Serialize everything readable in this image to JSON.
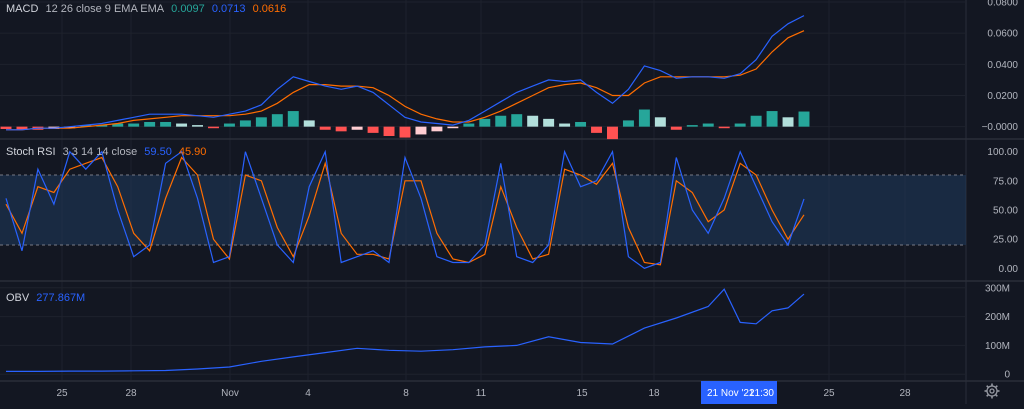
{
  "colors": {
    "background": "#131722",
    "grid": "#1e222d",
    "text": "#b2b5be",
    "blue": "#2962ff",
    "orange": "#ff6d00",
    "hist_green_strong": "#26a69a",
    "hist_green_light": "#b2dfdb",
    "hist_red_strong": "#ff5252",
    "hist_red_light": "#ffcdd2",
    "rsi_band": "#1f3a5c",
    "crosshair_label_bg": "#2962ff"
  },
  "macd": {
    "title": "MACD",
    "params": "12 26 close 9 EMA EMA",
    "histogram_value": "0.0097",
    "macd_value": "0.0713",
    "signal_value": "0.0616",
    "axis_ticks": [
      "0.0800",
      "0.0600",
      "0.0400",
      "0.0200",
      "−0.0000"
    ]
  },
  "stoch_rsi": {
    "title": "Stoch RSI",
    "params": "3 3 14 14 close",
    "k_value": "59.50",
    "d_value": "45.90",
    "axis_ticks": [
      "100.00",
      "75.00",
      "50.00",
      "25.00",
      "0.00"
    ]
  },
  "obv": {
    "title": "OBV",
    "value": "277.867M",
    "axis_ticks": [
      "300M",
      "200M",
      "100M",
      "0"
    ]
  },
  "time_axis": {
    "labels": [
      "25",
      "28",
      "Nov",
      "4",
      "8",
      "11",
      "15",
      "18",
      "25",
      "28"
    ],
    "crosshair_date": "21 Nov '21",
    "crosshair_time": "21:30"
  },
  "chart_data": [
    {
      "type": "line",
      "title": "MACD 12 26 close 9 EMA EMA",
      "ylim": [
        -0.006,
        0.08
      ],
      "x": [
        0,
        2,
        4,
        6,
        8,
        10,
        12,
        14,
        16,
        18,
        20,
        22,
        24,
        26,
        28,
        30,
        32,
        34,
        36,
        38,
        40,
        42,
        44,
        46,
        48,
        50,
        52,
        54,
        56,
        58,
        60,
        62,
        64,
        66,
        68,
        70,
        72,
        74,
        76,
        78,
        80,
        82,
        84,
        86,
        88,
        90,
        92,
        94,
        96,
        98,
        100
      ],
      "series": [
        {
          "name": "MACD",
          "values": [
            -0.002,
            -0.002,
            -0.001,
            -0.001,
            0.0,
            0.001,
            0.002,
            0.004,
            0.006,
            0.008,
            0.008,
            0.008,
            0.007,
            0.006,
            0.008,
            0.01,
            0.014,
            0.024,
            0.032,
            0.029,
            0.026,
            0.024,
            0.026,
            0.022,
            0.014,
            0.006,
            0.003,
            0.002,
            0.001,
            0.004,
            0.01,
            0.016,
            0.022,
            0.026,
            0.03,
            0.029,
            0.03,
            0.022,
            0.015,
            0.024,
            0.039,
            0.036,
            0.031,
            0.032,
            0.032,
            0.031,
            0.034,
            0.043,
            0.058,
            0.066,
            0.0713
          ]
        },
        {
          "name": "Signal",
          "values": [
            -0.002,
            -0.002,
            -0.001,
            -0.001,
            -0.001,
            0.0,
            0.001,
            0.002,
            0.004,
            0.005,
            0.006,
            0.007,
            0.007,
            0.007,
            0.007,
            0.008,
            0.01,
            0.015,
            0.022,
            0.027,
            0.027,
            0.026,
            0.026,
            0.025,
            0.02,
            0.013,
            0.008,
            0.005,
            0.003,
            0.003,
            0.006,
            0.01,
            0.015,
            0.02,
            0.025,
            0.027,
            0.028,
            0.025,
            0.02,
            0.02,
            0.028,
            0.032,
            0.032,
            0.032,
            0.032,
            0.032,
            0.033,
            0.037,
            0.048,
            0.057,
            0.0616
          ]
        },
        {
          "name": "Histogram",
          "values": [
            -0.0015,
            -0.002,
            -0.002,
            -0.0015,
            -0.001,
            0.001,
            0.001,
            0.002,
            0.002,
            0.003,
            0.003,
            0.002,
            0.001,
            -0.001,
            0.002,
            0.004,
            0.006,
            0.008,
            0.01,
            0.004,
            -0.002,
            -0.003,
            -0.002,
            -0.004,
            -0.006,
            -0.007,
            -0.005,
            -0.003,
            -0.001,
            0.002,
            0.005,
            0.007,
            0.008,
            0.007,
            0.005,
            0.002,
            0.003,
            -0.004,
            -0.008,
            0.004,
            0.011,
            0.006,
            -0.002,
            0.001,
            0.002,
            -0.001,
            0.002,
            0.007,
            0.01,
            0.006,
            0.0097
          ]
        }
      ]
    },
    {
      "type": "line",
      "title": "Stoch RSI 3 3 14 14 close",
      "ylim": [
        -10,
        110
      ],
      "bands": [
        20,
        80
      ],
      "x": [
        0,
        2,
        4,
        6,
        8,
        10,
        12,
        14,
        16,
        18,
        20,
        22,
        24,
        26,
        28,
        30,
        32,
        34,
        36,
        38,
        40,
        42,
        44,
        46,
        48,
        50,
        52,
        54,
        56,
        58,
        60,
        62,
        64,
        66,
        68,
        70,
        72,
        74,
        76,
        78,
        80,
        82,
        84,
        86,
        88,
        90,
        92,
        94,
        96,
        98,
        100
      ],
      "series": [
        {
          "name": "K",
          "values": [
            60,
            15,
            85,
            55,
            100,
            85,
            100,
            50,
            10,
            20,
            90,
            100,
            60,
            5,
            10,
            100,
            60,
            20,
            5,
            70,
            100,
            5,
            10,
            15,
            5,
            95,
            60,
            10,
            5,
            5,
            20,
            90,
            10,
            5,
            20,
            100,
            70,
            75,
            100,
            10,
            0,
            5,
            95,
            50,
            30,
            60,
            100,
            70,
            40,
            20,
            59.5
          ]
        },
        {
          "name": "D",
          "values": [
            55,
            30,
            70,
            65,
            85,
            90,
            95,
            70,
            30,
            15,
            60,
            95,
            80,
            25,
            8,
            80,
            75,
            35,
            10,
            45,
            90,
            30,
            12,
            12,
            8,
            75,
            75,
            30,
            8,
            5,
            12,
            70,
            35,
            8,
            12,
            85,
            80,
            72,
            90,
            35,
            5,
            3,
            75,
            65,
            40,
            50,
            90,
            80,
            50,
            25,
            45.9
          ]
        }
      ]
    },
    {
      "type": "line",
      "title": "OBV",
      "ylim": [
        -20,
        320
      ],
      "x": [
        0,
        4,
        8,
        12,
        16,
        20,
        24,
        28,
        32,
        36,
        40,
        44,
        48,
        52,
        56,
        60,
        64,
        68,
        72,
        76,
        80,
        84,
        88,
        90,
        92,
        94,
        96,
        98,
        100
      ],
      "series": [
        {
          "name": "OBV",
          "values": [
            10,
            10,
            11,
            11,
            12,
            13,
            18,
            25,
            45,
            60,
            75,
            90,
            83,
            80,
            85,
            95,
            100,
            130,
            110,
            105,
            160,
            195,
            235,
            295,
            180,
            175,
            220,
            230,
            277.867
          ]
        }
      ]
    }
  ]
}
